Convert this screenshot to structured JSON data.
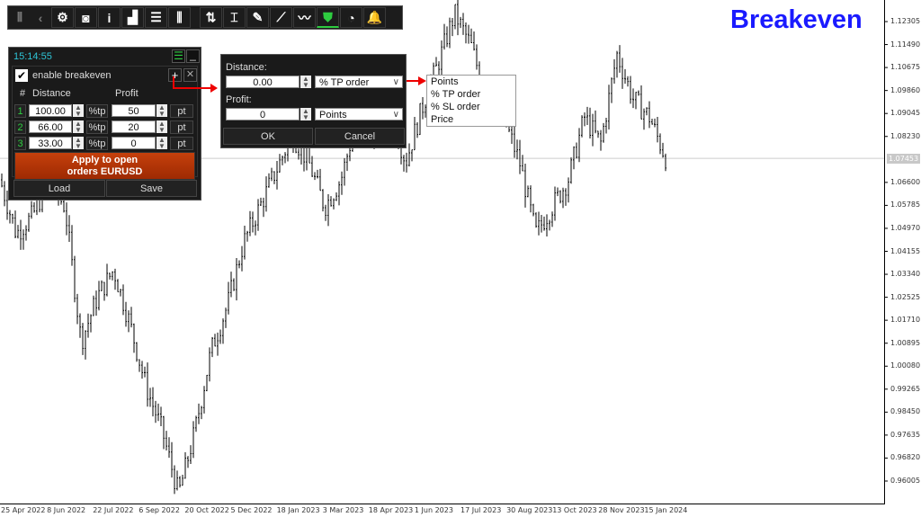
{
  "title": "Breakeven",
  "toolbar": {
    "icons": [
      "grip-icon",
      "chevron-left-icon",
      "gear-icon",
      "camera-icon",
      "info-icon",
      "signal-bars-icon",
      "list-icon",
      "candles-icon",
      "swap-updown-icon",
      "i-beam-icon",
      "edit-doc-icon",
      "trend-line-icon",
      "trend-line-2-icon",
      "shield-icon",
      "pie-chart-icon",
      "bell-icon"
    ],
    "active": "shield-icon",
    "active_color": "#2ecc40"
  },
  "panel": {
    "time": "15:14:55",
    "enable_label": "enable breakeven",
    "enabled": true,
    "col_num": "#",
    "col_distance": "Distance",
    "col_profit": "Profit",
    "rows": [
      {
        "n": "1",
        "distance": "100.00",
        "dunit": "%tp",
        "profit": "50",
        "punit": "pt"
      },
      {
        "n": "2",
        "distance": "66.00",
        "dunit": "%tp",
        "profit": "20",
        "punit": "pt"
      },
      {
        "n": "3",
        "distance": "33.00",
        "dunit": "%tp",
        "profit": "0",
        "punit": "pt"
      }
    ],
    "apply_line1": "Apply to open",
    "apply_line2": "orders EURUSD",
    "load": "Load",
    "save": "Save",
    "apply_color": "#b83808"
  },
  "dialog": {
    "distance_label": "Distance:",
    "distance_value": "0.00",
    "distance_type": "% TP order",
    "profit_label": "Profit:",
    "profit_value": "0",
    "profit_type": "Points",
    "ok": "OK",
    "cancel": "Cancel"
  },
  "dropdown": {
    "options": [
      "Points",
      "% TP order",
      "% SL order",
      "Price"
    ]
  },
  "chart": {
    "symbol": "EURUSD",
    "current_price": "1.07453",
    "price_ticks": [
      "1.12305",
      "1.11490",
      "1.10675",
      "1.09860",
      "1.09045",
      "1.08230",
      "1.06600",
      "1.05785",
      "1.04970",
      "1.04155",
      "1.03340",
      "1.02525",
      "1.01710",
      "1.00895",
      "1.00080",
      "0.99265",
      "0.98450",
      "0.97635",
      "0.96820",
      "0.96005"
    ],
    "date_ticks": [
      "25 Apr 2022",
      "8 Jun 2022",
      "22 Jul 2022",
      "6 Sep 2022",
      "20 Oct 2022",
      "5 Dec 2022",
      "18 Jan 2023",
      "3 Mar 2023",
      "18 Apr 2023",
      "1 Jun 2023",
      "17 Jul 2023",
      "30 Aug 2023",
      "13 Oct 2023",
      "28 Nov 2023",
      "15 Jan 2024"
    ],
    "price_path": [
      1.0669,
      1.0478,
      1.0541,
      1.0669,
      1.0573,
      1.0095,
      1.0254,
      1.035,
      1.0159,
      0.9935,
      0.9776,
      0.9553,
      0.9776,
      1.0063,
      1.0222,
      1.0446,
      1.0573,
      1.0701,
      1.0829,
      1.0733,
      1.0573,
      1.0669,
      1.0892,
      1.0829,
      1.0924,
      1.0733,
      1.0924,
      1.1084,
      1.1259,
      1.1147,
      1.0956,
      1.0892,
      1.0733,
      1.0478,
      1.0573,
      1.0669,
      1.0892,
      1.0797,
      1.1115,
      1.0956,
      1.0892,
      1.0749
    ]
  }
}
